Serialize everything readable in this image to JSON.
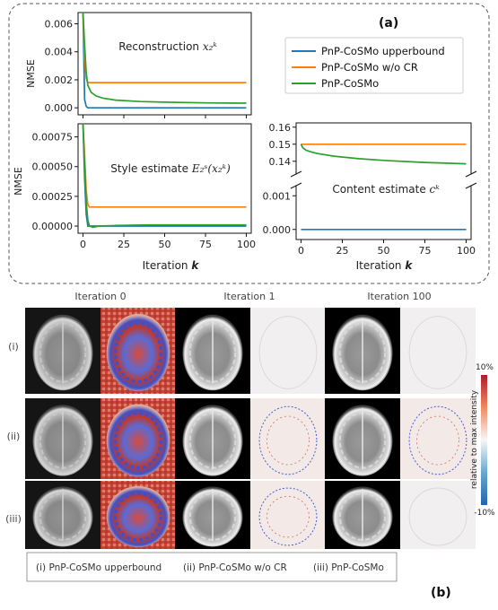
{
  "panel_a": {
    "label": "(a)",
    "legend": [
      "PnP-CoSMo upperbound",
      "PnP-CoSMo w/o CR",
      "PnP-CoSMo"
    ],
    "xlabel": "Iteration ",
    "xlabel_var": "k",
    "xticks": [
      "0",
      "25",
      "50",
      "75",
      "100"
    ]
  },
  "panel_b": {
    "label": "(b)",
    "columns": [
      "Iteration 0",
      "Iteration 1",
      "Iteration 100"
    ],
    "rows": [
      "(i)",
      "(ii)",
      "(iii)"
    ],
    "colorbar": {
      "top": "10%",
      "bottom": "-10%",
      "label": "relative to max intensity"
    },
    "caption": [
      "(i) PnP-CoSMo upperbound",
      "(ii) PnP-CoSMo w/o CR",
      "(iii) PnP-CoSMo"
    ]
  },
  "colors": {
    "upperbound": "#1f77b4",
    "wo_cr": "#ff7f0e",
    "cosmo": "#2ca02c"
  },
  "chart_data": [
    {
      "type": "line",
      "title": "Reconstruction ",
      "title_math": "x₂ᵏ",
      "ylabel": "NMSE",
      "xlim": [
        -3,
        103
      ],
      "ylim": [
        -0.0005,
        0.0068
      ],
      "yticks": [
        0.0,
        0.002,
        0.004,
        0.006
      ],
      "ytick_labels": [
        "0.000",
        "0.002",
        "0.004",
        "0.006"
      ],
      "series": [
        {
          "name": "PnP-CoSMo upperbound",
          "x": [
            0,
            1,
            2,
            3,
            100
          ],
          "y": [
            0.0068,
            0.0006,
            0.0001,
            0.0,
            0.0
          ]
        },
        {
          "name": "PnP-CoSMo w/o CR",
          "x": [
            0,
            1,
            2,
            3,
            5,
            100
          ],
          "y": [
            0.0068,
            0.0035,
            0.0021,
            0.0018,
            0.0018,
            0.0018
          ]
        },
        {
          "name": "PnP-CoSMo",
          "x": [
            0,
            1,
            2,
            3,
            5,
            8,
            12,
            20,
            35,
            50,
            75,
            100
          ],
          "y": [
            0.0068,
            0.0045,
            0.0025,
            0.0016,
            0.0011,
            0.00085,
            0.0007,
            0.00055,
            0.00045,
            0.0004,
            0.00035,
            0.00033
          ]
        }
      ]
    },
    {
      "type": "line",
      "title": "Style estimate ",
      "title_math": "E₂ˢ(x₂ᵏ)",
      "ylabel": "NMSE",
      "xlim": [
        -3,
        103
      ],
      "ylim": [
        -6e-05,
        0.00086
      ],
      "yticks": [
        0.0,
        0.00025,
        0.0005,
        0.00075
      ],
      "ytick_labels": [
        "0.00000",
        "0.00025",
        "0.00050",
        "0.00075"
      ],
      "xtick_labels": [
        "0",
        "25",
        "50",
        "75",
        "100"
      ],
      "series": [
        {
          "name": "PnP-CoSMo upperbound",
          "x": [
            0,
            1,
            2,
            3,
            100
          ],
          "y": [
            0.00086,
            0.0004,
            0.0001,
            0.0,
            0.0
          ]
        },
        {
          "name": "PnP-CoSMo w/o CR",
          "x": [
            0,
            1,
            2,
            3,
            4,
            100
          ],
          "y": [
            0.00086,
            0.0006,
            0.0003,
            0.00018,
            0.00016,
            0.00016
          ]
        },
        {
          "name": "PnP-CoSMo",
          "x": [
            0,
            1,
            2,
            3,
            4,
            6,
            10,
            20,
            40,
            70,
            100
          ],
          "y": [
            0.00086,
            0.0005,
            0.0002,
            5e-05,
            0.0,
            -1e-05,
            0.0,
            5e-06,
            1e-05,
            1e-05,
            1e-05
          ]
        }
      ]
    },
    {
      "type": "line",
      "title": "Content estimate ",
      "title_math": "cᵏ",
      "xlabel": "Iteration k",
      "broken_axis": true,
      "xlim": [
        -3,
        103
      ],
      "upper": {
        "ylim": [
          0.1325,
          0.1625
        ],
        "yticks": [
          0.14,
          0.15,
          0.16
        ],
        "ytick_labels": [
          "0.14",
          "0.15",
          "0.16"
        ]
      },
      "lower": {
        "ylim": [
          -0.0003,
          0.0013
        ],
        "yticks": [
          0.0,
          0.001
        ],
        "ytick_labels": [
          "0.000",
          "0.001"
        ]
      },
      "xtick_labels": [
        "0",
        "25",
        "50",
        "75",
        "100"
      ],
      "series": [
        {
          "name": "PnP-CoSMo upperbound",
          "x": [
            0,
            100
          ],
          "y": [
            0.0,
            0.0
          ]
        },
        {
          "name": "PnP-CoSMo w/o CR",
          "x": [
            0,
            100
          ],
          "y": [
            0.15,
            0.15
          ]
        },
        {
          "name": "PnP-CoSMo",
          "x": [
            0,
            1,
            3,
            6,
            10,
            20,
            35,
            50,
            75,
            100
          ],
          "y": [
            0.15,
            0.148,
            0.1465,
            0.1455,
            0.1445,
            0.143,
            0.1415,
            0.1405,
            0.1393,
            0.1385
          ]
        }
      ]
    }
  ]
}
